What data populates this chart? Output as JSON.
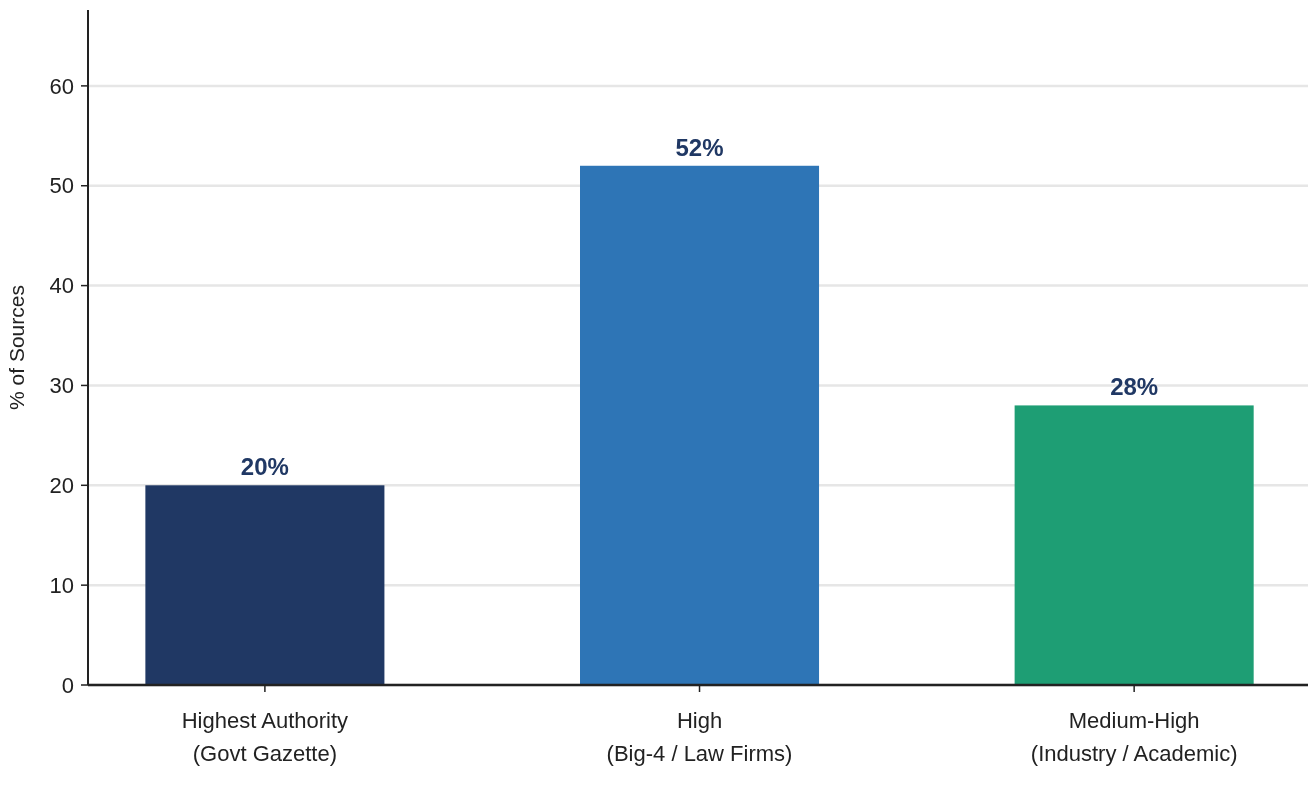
{
  "chart_data": {
    "type": "bar",
    "ylabel": "% of Sources",
    "categories": [
      "Highest Authority\n(Govt Gazette)",
      "High\n(Big-4 / Law Firms)",
      "Medium-High\n(Industry / Academic)"
    ],
    "values": [
      20,
      52,
      28
    ],
    "colors": [
      "#203864",
      "#2e75b6",
      "#1e9e74"
    ],
    "value_labels": [
      "20%",
      "52%",
      "28%"
    ],
    "ylim": [
      0,
      67.6
    ],
    "yticks": [
      0,
      10,
      20,
      30,
      40,
      50,
      60
    ],
    "grid": "y"
  }
}
